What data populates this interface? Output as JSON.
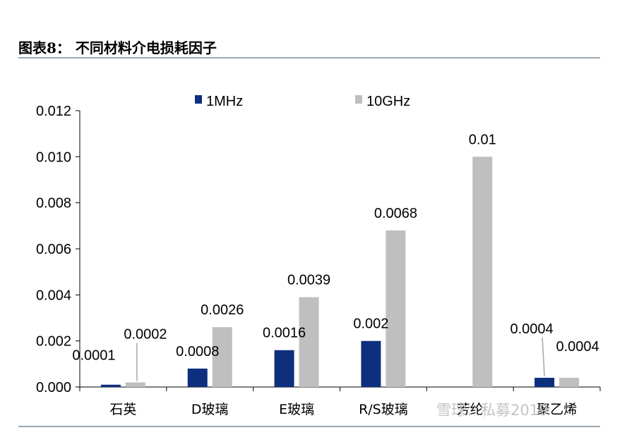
{
  "page": {
    "title": "图表8：  不同材料介电损耗因子",
    "watermark": "雪球：私募2019"
  },
  "colors": {
    "series_1": "#0d2f7d",
    "series_2": "#bfbfbf"
  },
  "chart_data": {
    "type": "bar",
    "title": "",
    "xlabel": "",
    "ylabel": "",
    "ylim": [
      0,
      0.012
    ],
    "yticks": [
      "0.000",
      "0.002",
      "0.004",
      "0.006",
      "0.008",
      "0.010",
      "0.012"
    ],
    "grid": false,
    "legend": "top",
    "categories": [
      "石英",
      "D玻璃",
      "E玻璃",
      "R/S玻璃",
      "芳纶",
      "聚乙烯"
    ],
    "series": [
      {
        "name": "1MHz",
        "values": [
          0.0001,
          0.0008,
          0.0016,
          0.002,
          null,
          0.0004
        ],
        "labels": [
          "0.0001",
          "0.0008",
          "0.0016",
          "0.002",
          "",
          "0.0004"
        ]
      },
      {
        "name": "10GHz",
        "values": [
          0.0002,
          0.0026,
          0.0039,
          0.0068,
          0.01,
          0.0004
        ],
        "labels": [
          "0.0002",
          "0.0026",
          "0.0039",
          "0.0068",
          "0.01",
          "0.0004"
        ]
      }
    ]
  }
}
